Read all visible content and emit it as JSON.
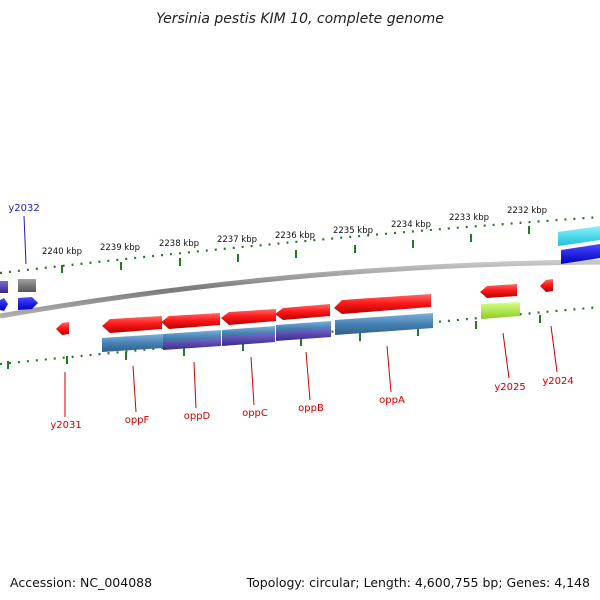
{
  "title": "Yersinia pestis KIM 10, complete genome",
  "footer": {
    "accession": "Accession: NC_004088",
    "summary": "Topology: circular; Length: 4,600,755 bp; Genes: 4,148"
  },
  "scale_labels": [
    "2240 kbp",
    "2239 kbp",
    "2238 kbp",
    "2237 kbp",
    "2236 kbp",
    "2235 kbp",
    "2234 kbp",
    "2233 kbp",
    "2232 kbp"
  ],
  "gene_labels": [
    "y2032",
    "y2031",
    "oppF",
    "oppD",
    "oppC",
    "oppB",
    "oppA",
    "y2025",
    "y2024"
  ],
  "colors": {
    "gene": "#ff1a1a",
    "gene_shade": "#b30000",
    "cds_blue": "#4682b4",
    "cds_purple": "#4b3a9a",
    "backbone": "#8a8a8a",
    "ticks": "#1e7d1e",
    "label_red": "#cc0000",
    "label_blue": "#1a1acc",
    "cyan": "#22d3e8",
    "blue": "#1010e0",
    "gray": "#707070",
    "yellowgreen": "#a8e63a"
  }
}
